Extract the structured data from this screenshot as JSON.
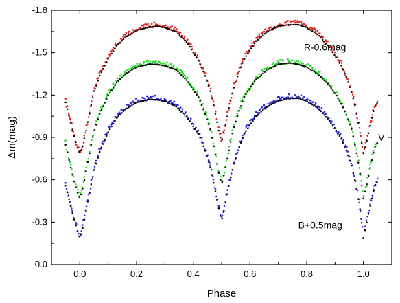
{
  "chart_data": {
    "type": "scatter",
    "title": "",
    "xlabel": "Phase",
    "ylabel": "Δm(mag)",
    "xlim": [
      -0.1,
      1.1
    ],
    "ylim": [
      0.0,
      -1.8
    ],
    "y_inverted": true,
    "x_ticks": [
      0.0,
      0.2,
      0.4,
      0.6,
      0.8,
      1.0
    ],
    "x_tick_labels": [
      "0.0",
      "0.2",
      "0.4",
      "0.6",
      "0.8",
      "1.0"
    ],
    "y_ticks": [
      0.0,
      -0.3,
      -0.6,
      -0.9,
      -1.2,
      -1.5,
      -1.8
    ],
    "y_tick_labels": [
      "0.0",
      "-0.3",
      "-0.6",
      "-0.9",
      "-1.2",
      "-1.5",
      "-1.8"
    ],
    "grid": false,
    "colors": {
      "R": "#e8211d",
      "V": "#22e022",
      "B": "#2a2ae6",
      "model": "#000000"
    },
    "series": [
      {
        "name": "R-0.6mag",
        "label_x": 0.79,
        "label_y": -1.54,
        "observed_color": "#e8211d",
        "x": [
          -0.05,
          -0.04,
          -0.03,
          -0.02,
          -0.01,
          0.0,
          0.01,
          0.02,
          0.03,
          0.04,
          0.05,
          0.07,
          0.1,
          0.13,
          0.16,
          0.2,
          0.24,
          0.27,
          0.3,
          0.34,
          0.38,
          0.42,
          0.44,
          0.46,
          0.47,
          0.48,
          0.49,
          0.5,
          0.51,
          0.52,
          0.53,
          0.54,
          0.56,
          0.58,
          0.62,
          0.66,
          0.7,
          0.74,
          0.77,
          0.8,
          0.84,
          0.88,
          0.92,
          0.94,
          0.96,
          0.97,
          0.98,
          0.99,
          1.0,
          1.01,
          1.02,
          1.03,
          1.04,
          1.05
        ],
        "y": [
          -1.16,
          -1.08,
          -1.0,
          -0.92,
          -0.85,
          -0.8,
          -0.85,
          -0.94,
          -1.04,
          -1.14,
          -1.23,
          -1.35,
          -1.47,
          -1.56,
          -1.62,
          -1.67,
          -1.69,
          -1.7,
          -1.69,
          -1.66,
          -1.58,
          -1.45,
          -1.36,
          -1.24,
          -1.16,
          -1.06,
          -0.96,
          -0.88,
          -0.96,
          -1.06,
          -1.16,
          -1.24,
          -1.37,
          -1.47,
          -1.59,
          -1.66,
          -1.7,
          -1.71,
          -1.71,
          -1.69,
          -1.64,
          -1.55,
          -1.43,
          -1.34,
          -1.22,
          -1.14,
          -1.04,
          -0.92,
          -0.8,
          -0.87,
          -0.96,
          -1.05,
          -1.13,
          -1.16
        ]
      },
      {
        "name": "V",
        "label_x": 1.052,
        "label_y": -0.9,
        "observed_color": "#22e022",
        "x": [
          -0.05,
          -0.04,
          -0.03,
          -0.02,
          -0.01,
          0.0,
          0.01,
          0.02,
          0.03,
          0.04,
          0.05,
          0.07,
          0.1,
          0.13,
          0.16,
          0.2,
          0.24,
          0.27,
          0.3,
          0.34,
          0.38,
          0.42,
          0.44,
          0.46,
          0.47,
          0.48,
          0.49,
          0.5,
          0.51,
          0.52,
          0.53,
          0.54,
          0.56,
          0.58,
          0.62,
          0.66,
          0.7,
          0.74,
          0.77,
          0.8,
          0.84,
          0.88,
          0.92,
          0.94,
          0.96,
          0.97,
          0.98,
          0.99,
          1.0,
          1.01,
          1.02,
          1.03,
          1.04,
          1.05
        ],
        "y": [
          -0.86,
          -0.77,
          -0.68,
          -0.6,
          -0.53,
          -0.48,
          -0.55,
          -0.65,
          -0.76,
          -0.86,
          -0.95,
          -1.08,
          -1.21,
          -1.3,
          -1.36,
          -1.41,
          -1.43,
          -1.43,
          -1.42,
          -1.39,
          -1.31,
          -1.19,
          -1.09,
          -0.97,
          -0.87,
          -0.77,
          -0.66,
          -0.58,
          -0.66,
          -0.76,
          -0.86,
          -0.96,
          -1.09,
          -1.2,
          -1.32,
          -1.39,
          -1.43,
          -1.44,
          -1.43,
          -1.41,
          -1.36,
          -1.28,
          -1.16,
          -1.07,
          -0.96,
          -0.86,
          -0.76,
          -0.63,
          -0.48,
          -0.56,
          -0.66,
          -0.75,
          -0.84,
          -0.88
        ]
      },
      {
        "name": "B+0.5mag",
        "label_x": 0.77,
        "label_y": -0.28,
        "observed_color": "#2a2ae6",
        "x": [
          -0.05,
          -0.04,
          -0.03,
          -0.02,
          -0.01,
          0.0,
          0.01,
          0.02,
          0.03,
          0.04,
          0.05,
          0.07,
          0.1,
          0.13,
          0.16,
          0.2,
          0.24,
          0.27,
          0.3,
          0.34,
          0.38,
          0.42,
          0.44,
          0.46,
          0.47,
          0.48,
          0.49,
          0.5,
          0.51,
          0.52,
          0.53,
          0.54,
          0.56,
          0.58,
          0.62,
          0.66,
          0.7,
          0.74,
          0.77,
          0.8,
          0.84,
          0.88,
          0.92,
          0.94,
          0.96,
          0.97,
          0.98,
          0.99,
          1.0,
          1.01,
          1.02,
          1.03,
          1.04,
          1.05
        ],
        "y": [
          -0.57,
          -0.49,
          -0.41,
          -0.33,
          -0.26,
          -0.2,
          -0.27,
          -0.37,
          -0.48,
          -0.58,
          -0.67,
          -0.81,
          -0.95,
          -1.05,
          -1.11,
          -1.16,
          -1.18,
          -1.18,
          -1.17,
          -1.13,
          -1.05,
          -0.93,
          -0.83,
          -0.7,
          -0.61,
          -0.51,
          -0.41,
          -0.32,
          -0.41,
          -0.51,
          -0.61,
          -0.7,
          -0.83,
          -0.94,
          -1.06,
          -1.13,
          -1.17,
          -1.19,
          -1.19,
          -1.17,
          -1.12,
          -1.03,
          -0.91,
          -0.82,
          -0.7,
          -0.61,
          -0.5,
          -0.38,
          -0.2,
          -0.29,
          -0.39,
          -0.48,
          -0.57,
          -0.6
        ]
      }
    ]
  }
}
